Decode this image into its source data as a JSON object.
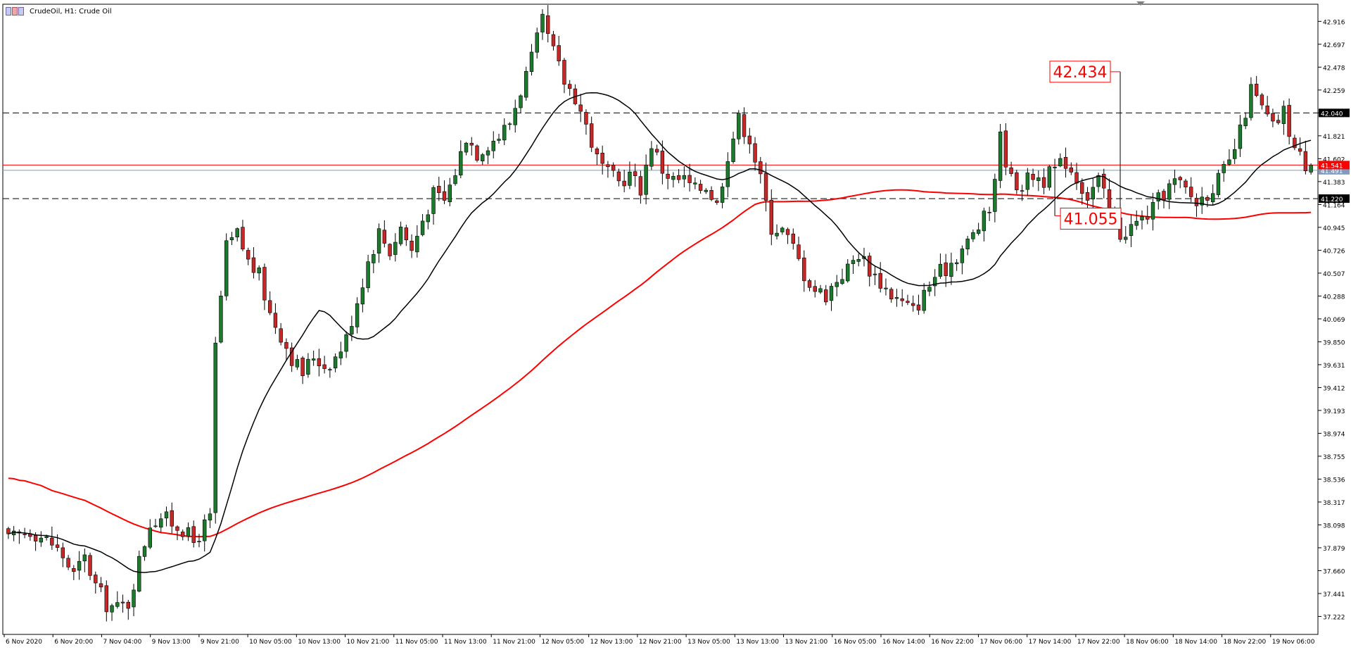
{
  "header": {
    "symbol_label": "CrudeOil, H1:  Crude Oil",
    "icon": "chart-window-icon"
  },
  "colors": {
    "bull_candle": "#1b7a2c",
    "bear_candle": "#c62828",
    "candle_wick": "#000000",
    "fast_ma": "#000000",
    "slow_ma": "#ff0000",
    "level_line": "#000000",
    "callout": "#ff0000",
    "current_price_tag": "#ff0000",
    "bid_tag": "#7f9bbf"
  },
  "chart_data": {
    "type": "candlestick",
    "ylim": [
      37.05,
      43.08
    ],
    "grid": false,
    "y_ticks": [
      "42.916",
      "42.697",
      "42.478",
      "42.259",
      "42.040",
      "41.821",
      "41.602",
      "41.383",
      "41.164",
      "40.945",
      "40.726",
      "40.507",
      "40.288",
      "40.069",
      "39.850",
      "39.631",
      "39.412",
      "39.193",
      "38.974",
      "38.755",
      "38.536",
      "38.317",
      "38.098",
      "37.879",
      "37.660",
      "37.441",
      "37.222"
    ],
    "x_labels": [
      "6 Nov 2020",
      "6 Nov 20:00",
      "7 Nov 04:00",
      "9 Nov 13:00",
      "9 Nov 21:00",
      "10 Nov 05:00",
      "10 Nov 13:00",
      "10 Nov 21:00",
      "11 Nov 05:00",
      "11 Nov 13:00",
      "11 Nov 21:00",
      "12 Nov 05:00",
      "12 Nov 13:00",
      "12 Nov 21:00",
      "13 Nov 05:00",
      "13 Nov 13:00",
      "13 Nov 21:00",
      "16 Nov 05:00",
      "16 Nov 14:00",
      "16 Nov 22:00",
      "17 Nov 06:00",
      "17 Nov 14:00",
      "17 Nov 22:00",
      "18 Nov 06:00",
      "18 Nov 14:00",
      "18 Nov 22:00",
      "19 Nov 06:00"
    ],
    "horizontal_levels": [
      {
        "value": 42.04,
        "label": "42.040",
        "style": "dashed"
      },
      {
        "value": 41.22,
        "label": "41.220",
        "style": "dashed"
      }
    ],
    "current_price": {
      "value": 41.541,
      "label": "41.541"
    },
    "bid_price": {
      "value": 41.491,
      "label": "41.491"
    },
    "annotations": [
      {
        "text": "42.434",
        "value": 42.434,
        "candle_index": 204
      },
      {
        "text": "41.055",
        "value": 41.055,
        "candle_index": 192
      }
    ],
    "fast_ma_period": 20,
    "slow_ma_period": 100,
    "slow_ma_seed": [
      38.55,
      38.55,
      38.54,
      38.54,
      38.53,
      38.52,
      38.51,
      38.49,
      38.47,
      38.46,
      38.45,
      38.44,
      38.43,
      38.42,
      38.41,
      38.39,
      38.37,
      38.35,
      38.33,
      38.31,
      38.29,
      38.27,
      38.25,
      38.23,
      38.21,
      38.19,
      38.17,
      38.15,
      38.13,
      38.12,
      38.11,
      38.1,
      38.09,
      38.08
    ],
    "anchors": [
      [
        0,
        37.95
      ],
      [
        4,
        38.05
      ],
      [
        8,
        37.92
      ],
      [
        10,
        37.8
      ],
      [
        12,
        37.62
      ],
      [
        14,
        37.78
      ],
      [
        16,
        37.52
      ],
      [
        18,
        37.34
      ],
      [
        20,
        37.3
      ],
      [
        22,
        37.35
      ],
      [
        24,
        37.75
      ],
      [
        26,
        38.12
      ],
      [
        28,
        38.18
      ],
      [
        32,
        38.06
      ],
      [
        34,
        37.93
      ],
      [
        36,
        38.09
      ],
      [
        37,
        38.15
      ],
      [
        38,
        39.8
      ],
      [
        40,
        40.75
      ],
      [
        42,
        40.88
      ],
      [
        44,
        40.62
      ],
      [
        46,
        40.48
      ],
      [
        48,
        40.12
      ],
      [
        50,
        39.92
      ],
      [
        52,
        39.7
      ],
      [
        54,
        39.55
      ],
      [
        56,
        39.72
      ],
      [
        58,
        39.62
      ],
      [
        60,
        39.7
      ],
      [
        62,
        39.88
      ],
      [
        64,
        40.25
      ],
      [
        66,
        40.62
      ],
      [
        68,
        40.9
      ],
      [
        70,
        40.72
      ],
      [
        72,
        40.95
      ],
      [
        74,
        40.72
      ],
      [
        76,
        41.02
      ],
      [
        78,
        41.26
      ],
      [
        80,
        41.2
      ],
      [
        82,
        41.48
      ],
      [
        84,
        41.82
      ],
      [
        86,
        41.66
      ],
      [
        88,
        41.75
      ],
      [
        90,
        41.82
      ],
      [
        92,
        41.95
      ],
      [
        94,
        42.26
      ],
      [
        96,
        42.55
      ],
      [
        98,
        42.91
      ],
      [
        100,
        42.62
      ],
      [
        102,
        42.34
      ],
      [
        104,
        42.2
      ],
      [
        106,
        41.92
      ],
      [
        108,
        41.6
      ],
      [
        110,
        41.45
      ],
      [
        112,
        41.38
      ],
      [
        114,
        41.45
      ],
      [
        116,
        41.32
      ],
      [
        118,
        41.75
      ],
      [
        120,
        41.5
      ],
      [
        122,
        41.4
      ],
      [
        124,
        41.4
      ],
      [
        126,
        41.3
      ],
      [
        128,
        41.35
      ],
      [
        130,
        41.16
      ],
      [
        132,
        41.65
      ],
      [
        134,
        41.98
      ],
      [
        136,
        41.8
      ],
      [
        138,
        41.4
      ],
      [
        140,
        40.95
      ],
      [
        142,
        40.92
      ],
      [
        144,
        40.75
      ],
      [
        146,
        40.5
      ],
      [
        148,
        40.35
      ],
      [
        150,
        40.3
      ],
      [
        152,
        40.45
      ],
      [
        154,
        40.55
      ],
      [
        156,
        40.7
      ],
      [
        158,
        40.55
      ],
      [
        160,
        40.42
      ],
      [
        162,
        40.3
      ],
      [
        164,
        40.22
      ],
      [
        166,
        40.15
      ],
      [
        168,
        40.3
      ],
      [
        170,
        40.48
      ],
      [
        172,
        40.55
      ],
      [
        174,
        40.68
      ],
      [
        176,
        40.8
      ],
      [
        178,
        40.95
      ],
      [
        180,
        41.1
      ],
      [
        182,
        41.8
      ],
      [
        184,
        41.4
      ],
      [
        186,
        41.35
      ],
      [
        188,
        41.45
      ],
      [
        190,
        41.4
      ],
      [
        192,
        41.5
      ],
      [
        194,
        41.58
      ],
      [
        196,
        41.42
      ],
      [
        198,
        41.25
      ],
      [
        200,
        41.4
      ],
      [
        202,
        41.1
      ],
      [
        204,
        40.88
      ],
      [
        206,
        40.95
      ],
      [
        208,
        41.02
      ],
      [
        210,
        41.12
      ],
      [
        212,
        41.28
      ],
      [
        214,
        41.38
      ],
      [
        216,
        41.3
      ],
      [
        218,
        41.18
      ],
      [
        220,
        41.28
      ],
      [
        222,
        41.4
      ],
      [
        224,
        41.55
      ],
      [
        226,
        41.85
      ],
      [
        228,
        42.26
      ],
      [
        230,
        42.08
      ],
      [
        232,
        41.9
      ],
      [
        234,
        42.05
      ],
      [
        236,
        41.7
      ],
      [
        238,
        41.55
      ],
      [
        239,
        41.54
      ]
    ],
    "candle_count": 240
  }
}
